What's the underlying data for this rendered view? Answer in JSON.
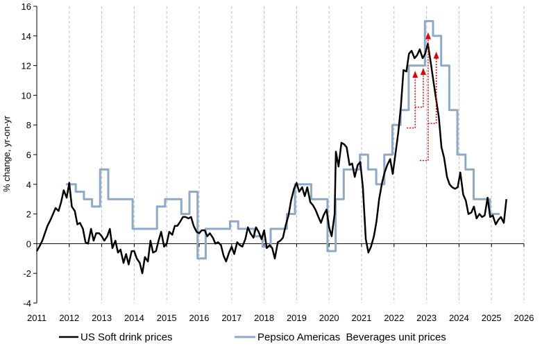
{
  "chart_data": {
    "type": "line",
    "title": "",
    "xlabel": "",
    "ylabel": "% change, yr-on-yr",
    "xlim": [
      2011,
      2026
    ],
    "ylim": [
      -4,
      16
    ],
    "x_ticks": [
      2011,
      2012,
      2013,
      2014,
      2015,
      2016,
      2017,
      2018,
      2019,
      2020,
      2021,
      2022,
      2023,
      2024,
      2025,
      2026
    ],
    "x_tick_labels": [
      "2011",
      "2012",
      "2013",
      "2014",
      "2015",
      "2016",
      "2017",
      "2018",
      "2019",
      "2020",
      "2021",
      "2022",
      "2023",
      "2024",
      "2025",
      "2026"
    ],
    "y_ticks": [
      -4,
      -2,
      0,
      2,
      4,
      6,
      8,
      10,
      12,
      14,
      16
    ],
    "y_tick_labels": [
      "-4",
      "-2",
      "0",
      "2",
      "4",
      "6",
      "8",
      "10",
      "12",
      "14",
      "16"
    ],
    "grid": {
      "x": true,
      "y": false,
      "style": "dashed"
    },
    "legend": "bottom",
    "colors": {
      "soft_drink": "#000000",
      "pepsico": "#8EA9C8",
      "annotation": "#e00000",
      "grid": "#bfbfbf"
    },
    "series": [
      {
        "name": "US Soft drink prices",
        "color": "#000000",
        "points": [
          [
            2011.0,
            -0.5
          ],
          [
            2011.08,
            -0.2
          ],
          [
            2011.17,
            0.2
          ],
          [
            2011.25,
            0.7
          ],
          [
            2011.33,
            1.2
          ],
          [
            2011.42,
            1.6
          ],
          [
            2011.5,
            2.0
          ],
          [
            2011.58,
            2.4
          ],
          [
            2011.67,
            2.2
          ],
          [
            2011.75,
            2.8
          ],
          [
            2011.83,
            3.6
          ],
          [
            2011.92,
            3.1
          ],
          [
            2012.0,
            4.1
          ],
          [
            2012.08,
            2.5
          ],
          [
            2012.17,
            2.2
          ],
          [
            2012.25,
            1.3
          ],
          [
            2012.33,
            1.4
          ],
          [
            2012.42,
            1.0
          ],
          [
            2012.5,
            0.1
          ],
          [
            2012.58,
            0.0
          ],
          [
            2012.67,
            1.0
          ],
          [
            2012.75,
            0.2
          ],
          [
            2012.83,
            0.7
          ],
          [
            2012.92,
            0.7
          ],
          [
            2013.0,
            0.5
          ],
          [
            2013.08,
            0.2
          ],
          [
            2013.17,
            0.5
          ],
          [
            2013.25,
            1.0
          ],
          [
            2013.33,
            -0.3
          ],
          [
            2013.42,
            0.2
          ],
          [
            2013.5,
            -0.6
          ],
          [
            2013.58,
            -0.4
          ],
          [
            2013.67,
            -1.3
          ],
          [
            2013.75,
            -0.7
          ],
          [
            2013.83,
            -1.4
          ],
          [
            2013.92,
            -0.5
          ],
          [
            2014.0,
            -0.5
          ],
          [
            2014.08,
            -1.0
          ],
          [
            2014.17,
            -1.3
          ],
          [
            2014.25,
            -2.0
          ],
          [
            2014.33,
            -0.9
          ],
          [
            2014.42,
            -1.2
          ],
          [
            2014.5,
            0.2
          ],
          [
            2014.58,
            -0.6
          ],
          [
            2014.67,
            -0.5
          ],
          [
            2014.75,
            0.2
          ],
          [
            2014.83,
            0.8
          ],
          [
            2014.92,
            -0.2
          ],
          [
            2015.0,
            0.0
          ],
          [
            2015.08,
            0.8
          ],
          [
            2015.17,
            0.6
          ],
          [
            2015.25,
            1.2
          ],
          [
            2015.33,
            1.2
          ],
          [
            2015.42,
            1.5
          ],
          [
            2015.5,
            1.8
          ],
          [
            2015.58,
            1.8
          ],
          [
            2015.67,
            1.7
          ],
          [
            2015.75,
            1.8
          ],
          [
            2015.83,
            1.2
          ],
          [
            2015.92,
            0.8
          ],
          [
            2016.0,
            0.7
          ],
          [
            2016.08,
            0.9
          ],
          [
            2016.17,
            0.9
          ],
          [
            2016.25,
            0.5
          ],
          [
            2016.33,
            0.7
          ],
          [
            2016.42,
            0.4
          ],
          [
            2016.5,
            0.0
          ],
          [
            2016.58,
            0.1
          ],
          [
            2016.67,
            -0.1
          ],
          [
            2016.75,
            -0.8
          ],
          [
            2016.83,
            -1.2
          ],
          [
            2016.92,
            -0.6
          ],
          [
            2017.0,
            -0.2
          ],
          [
            2017.08,
            -0.7
          ],
          [
            2017.17,
            0.1
          ],
          [
            2017.25,
            -0.1
          ],
          [
            2017.33,
            -0.2
          ],
          [
            2017.42,
            0.3
          ],
          [
            2017.5,
            1.1
          ],
          [
            2017.58,
            0.7
          ],
          [
            2017.67,
            0.4
          ],
          [
            2017.75,
            1.1
          ],
          [
            2017.83,
            0.8
          ],
          [
            2017.92,
            0.3
          ],
          [
            2018.0,
            0.9
          ],
          [
            2018.08,
            -0.3
          ],
          [
            2018.17,
            -0.1
          ],
          [
            2018.25,
            -0.3
          ],
          [
            2018.33,
            -1.0
          ],
          [
            2018.42,
            0.1
          ],
          [
            2018.5,
            0.2
          ],
          [
            2018.58,
            0.4
          ],
          [
            2018.67,
            1.3
          ],
          [
            2018.75,
            1.9
          ],
          [
            2018.83,
            2.9
          ],
          [
            2018.92,
            3.7
          ],
          [
            2019.0,
            4.1
          ],
          [
            2019.08,
            3.5
          ],
          [
            2019.17,
            3.8
          ],
          [
            2019.25,
            3.2
          ],
          [
            2019.33,
            3.8
          ],
          [
            2019.42,
            2.8
          ],
          [
            2019.5,
            2.6
          ],
          [
            2019.58,
            2.3
          ],
          [
            2019.67,
            1.8
          ],
          [
            2019.75,
            1.4
          ],
          [
            2019.83,
            1.9
          ],
          [
            2019.92,
            2.3
          ],
          [
            2020.0,
            1.1
          ],
          [
            2020.08,
            0.5
          ],
          [
            2020.17,
            2.0
          ],
          [
            2020.21,
            6.2
          ],
          [
            2020.29,
            5.2
          ],
          [
            2020.38,
            6.8
          ],
          [
            2020.46,
            6.7
          ],
          [
            2020.54,
            6.5
          ],
          [
            2020.63,
            5.3
          ],
          [
            2020.71,
            5.4
          ],
          [
            2020.79,
            4.5
          ],
          [
            2020.88,
            5.3
          ],
          [
            2020.96,
            5.5
          ],
          [
            2021.04,
            3.8
          ],
          [
            2021.13,
            0.3
          ],
          [
            2021.21,
            -0.6
          ],
          [
            2021.29,
            -0.2
          ],
          [
            2021.38,
            0.5
          ],
          [
            2021.46,
            1.5
          ],
          [
            2021.54,
            3.0
          ],
          [
            2021.63,
            4.1
          ],
          [
            2021.71,
            4.8
          ],
          [
            2021.79,
            5.3
          ],
          [
            2021.88,
            5.7
          ],
          [
            2021.96,
            4.7
          ],
          [
            2022.04,
            6.0
          ],
          [
            2022.13,
            7.5
          ],
          [
            2022.21,
            9.2
          ],
          [
            2022.29,
            11.7
          ],
          [
            2022.38,
            11.6
          ],
          [
            2022.46,
            12.8
          ],
          [
            2022.54,
            13.0
          ],
          [
            2022.63,
            12.5
          ],
          [
            2022.71,
            12.7
          ],
          [
            2022.79,
            13.1
          ],
          [
            2022.88,
            12.5
          ],
          [
            2022.96,
            12.8
          ],
          [
            2023.04,
            13.5
          ],
          [
            2023.13,
            12.2
          ],
          [
            2023.21,
            11.0
          ],
          [
            2023.29,
            9.8
          ],
          [
            2023.38,
            8.5
          ],
          [
            2023.46,
            6.5
          ],
          [
            2023.54,
            5.8
          ],
          [
            2023.63,
            4.5
          ],
          [
            2023.71,
            4.0
          ],
          [
            2023.79,
            3.8
          ],
          [
            2023.88,
            3.7
          ],
          [
            2023.96,
            3.8
          ],
          [
            2024.04,
            4.8
          ],
          [
            2024.13,
            3.3
          ],
          [
            2024.21,
            2.9
          ],
          [
            2024.29,
            2.0
          ],
          [
            2024.38,
            2.1
          ],
          [
            2024.46,
            2.5
          ],
          [
            2024.54,
            1.7
          ],
          [
            2024.63,
            2.0
          ],
          [
            2024.71,
            1.8
          ],
          [
            2024.79,
            1.9
          ],
          [
            2024.88,
            3.1
          ],
          [
            2024.96,
            1.8
          ],
          [
            2025.04,
            1.9
          ],
          [
            2025.13,
            1.3
          ],
          [
            2025.21,
            1.6
          ],
          [
            2025.29,
            1.8
          ],
          [
            2025.38,
            1.4
          ],
          [
            2025.46,
            3.0
          ]
        ]
      },
      {
        "name": "Pepsico Americas  Beverages unit prices",
        "color": "#8EA9C8",
        "points": [
          [
            2011.9,
            4.0
          ],
          [
            2012.2,
            4.0
          ],
          [
            2012.2,
            3.5
          ],
          [
            2012.45,
            3.5
          ],
          [
            2012.45,
            3.0
          ],
          [
            2012.7,
            3.0
          ],
          [
            2012.7,
            2.5
          ],
          [
            2012.95,
            2.5
          ],
          [
            2012.95,
            5.0
          ],
          [
            2013.2,
            5.0
          ],
          [
            2013.2,
            3.0
          ],
          [
            2013.95,
            3.0
          ],
          [
            2013.95,
            1.0
          ],
          [
            2014.7,
            1.0
          ],
          [
            2014.7,
            2.5
          ],
          [
            2014.95,
            2.5
          ],
          [
            2014.95,
            3.0
          ],
          [
            2015.45,
            3.0
          ],
          [
            2015.45,
            2.0
          ],
          [
            2015.7,
            2.0
          ],
          [
            2015.7,
            3.5
          ],
          [
            2015.95,
            3.5
          ],
          [
            2015.95,
            -1.0
          ],
          [
            2016.2,
            -1.0
          ],
          [
            2016.2,
            1.0
          ],
          [
            2016.95,
            1.0
          ],
          [
            2016.95,
            1.5
          ],
          [
            2017.2,
            1.5
          ],
          [
            2017.2,
            1.0
          ],
          [
            2017.7,
            1.0
          ],
          [
            2017.7,
            0.5
          ],
          [
            2017.95,
            0.5
          ],
          [
            2017.95,
            -0.2
          ],
          [
            2018.2,
            -0.2
          ],
          [
            2018.2,
            1.0
          ],
          [
            2018.7,
            1.0
          ],
          [
            2018.7,
            2.0
          ],
          [
            2018.95,
            2.0
          ],
          [
            2018.95,
            4.0
          ],
          [
            2019.45,
            4.0
          ],
          [
            2019.45,
            3.0
          ],
          [
            2019.95,
            3.0
          ],
          [
            2019.95,
            -0.5
          ],
          [
            2020.2,
            -0.5
          ],
          [
            2020.2,
            3.0
          ],
          [
            2020.45,
            3.0
          ],
          [
            2020.45,
            5.0
          ],
          [
            2020.95,
            5.0
          ],
          [
            2020.95,
            6.0
          ],
          [
            2021.2,
            6.0
          ],
          [
            2021.2,
            5.0
          ],
          [
            2021.45,
            5.0
          ],
          [
            2021.45,
            4.0
          ],
          [
            2021.7,
            4.0
          ],
          [
            2021.7,
            6.0
          ],
          [
            2021.95,
            6.0
          ],
          [
            2021.95,
            8.0
          ],
          [
            2022.2,
            8.0
          ],
          [
            2022.2,
            9.0
          ],
          [
            2022.45,
            9.0
          ],
          [
            2022.45,
            12.0
          ],
          [
            2022.95,
            12.0
          ],
          [
            2022.95,
            15.0
          ],
          [
            2023.2,
            15.0
          ],
          [
            2023.2,
            14.0
          ],
          [
            2023.45,
            14.0
          ],
          [
            2023.45,
            12.0
          ],
          [
            2023.7,
            12.0
          ],
          [
            2023.7,
            9.0
          ],
          [
            2023.95,
            9.0
          ],
          [
            2023.95,
            6.0
          ],
          [
            2024.2,
            6.0
          ],
          [
            2024.2,
            5.0
          ],
          [
            2024.45,
            5.0
          ],
          [
            2024.45,
            3.0
          ],
          [
            2024.95,
            3.0
          ],
          [
            2024.95,
            2.0
          ],
          [
            2025.25,
            2.0
          ]
        ]
      }
    ],
    "annotations": [
      {
        "type": "arrow",
        "x": 2022.65,
        "from_y": 7.8,
        "to_y": 11.5
      },
      {
        "type": "arrow",
        "x": 2022.9,
        "from_y": 9.2,
        "to_y": 11.7
      },
      {
        "type": "arrow",
        "x": 2023.05,
        "from_y": 5.6,
        "to_y": 14.1
      },
      {
        "type": "arrow",
        "x": 2023.3,
        "from_y": 8.1,
        "to_y": 12.8
      }
    ]
  }
}
